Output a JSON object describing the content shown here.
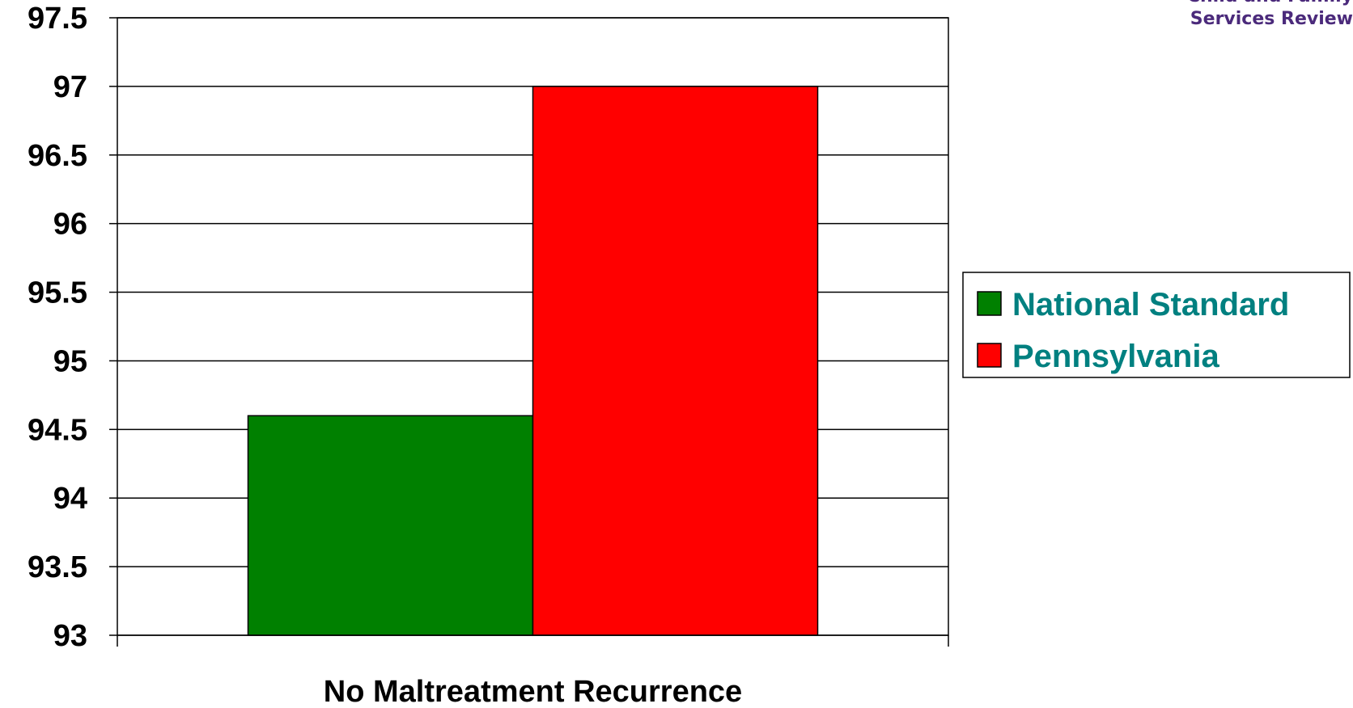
{
  "logo": {
    "line1": "Child and Family",
    "line2": "Services Review"
  },
  "colors": {
    "text": "#000000",
    "legend_text": "#008080",
    "logo": "#4b2a7b",
    "grid": "#000000"
  },
  "chart_data": {
    "type": "bar",
    "categories": [
      "No Maltreatment Recurrence"
    ],
    "series": [
      {
        "name": "National Standard",
        "values": [
          94.6
        ],
        "color": "#008000"
      },
      {
        "name": "Pennsylvania",
        "values": [
          97.0
        ],
        "color": "#ff0000"
      }
    ],
    "title": "",
    "xlabel": "",
    "ylabel": "",
    "ylim": [
      93,
      97.5
    ],
    "yticks": [
      "93",
      "93.5",
      "94",
      "94.5",
      "95",
      "95.5",
      "96",
      "96.5",
      "97",
      "97.5"
    ],
    "grid": true,
    "legend_position": "right"
  }
}
